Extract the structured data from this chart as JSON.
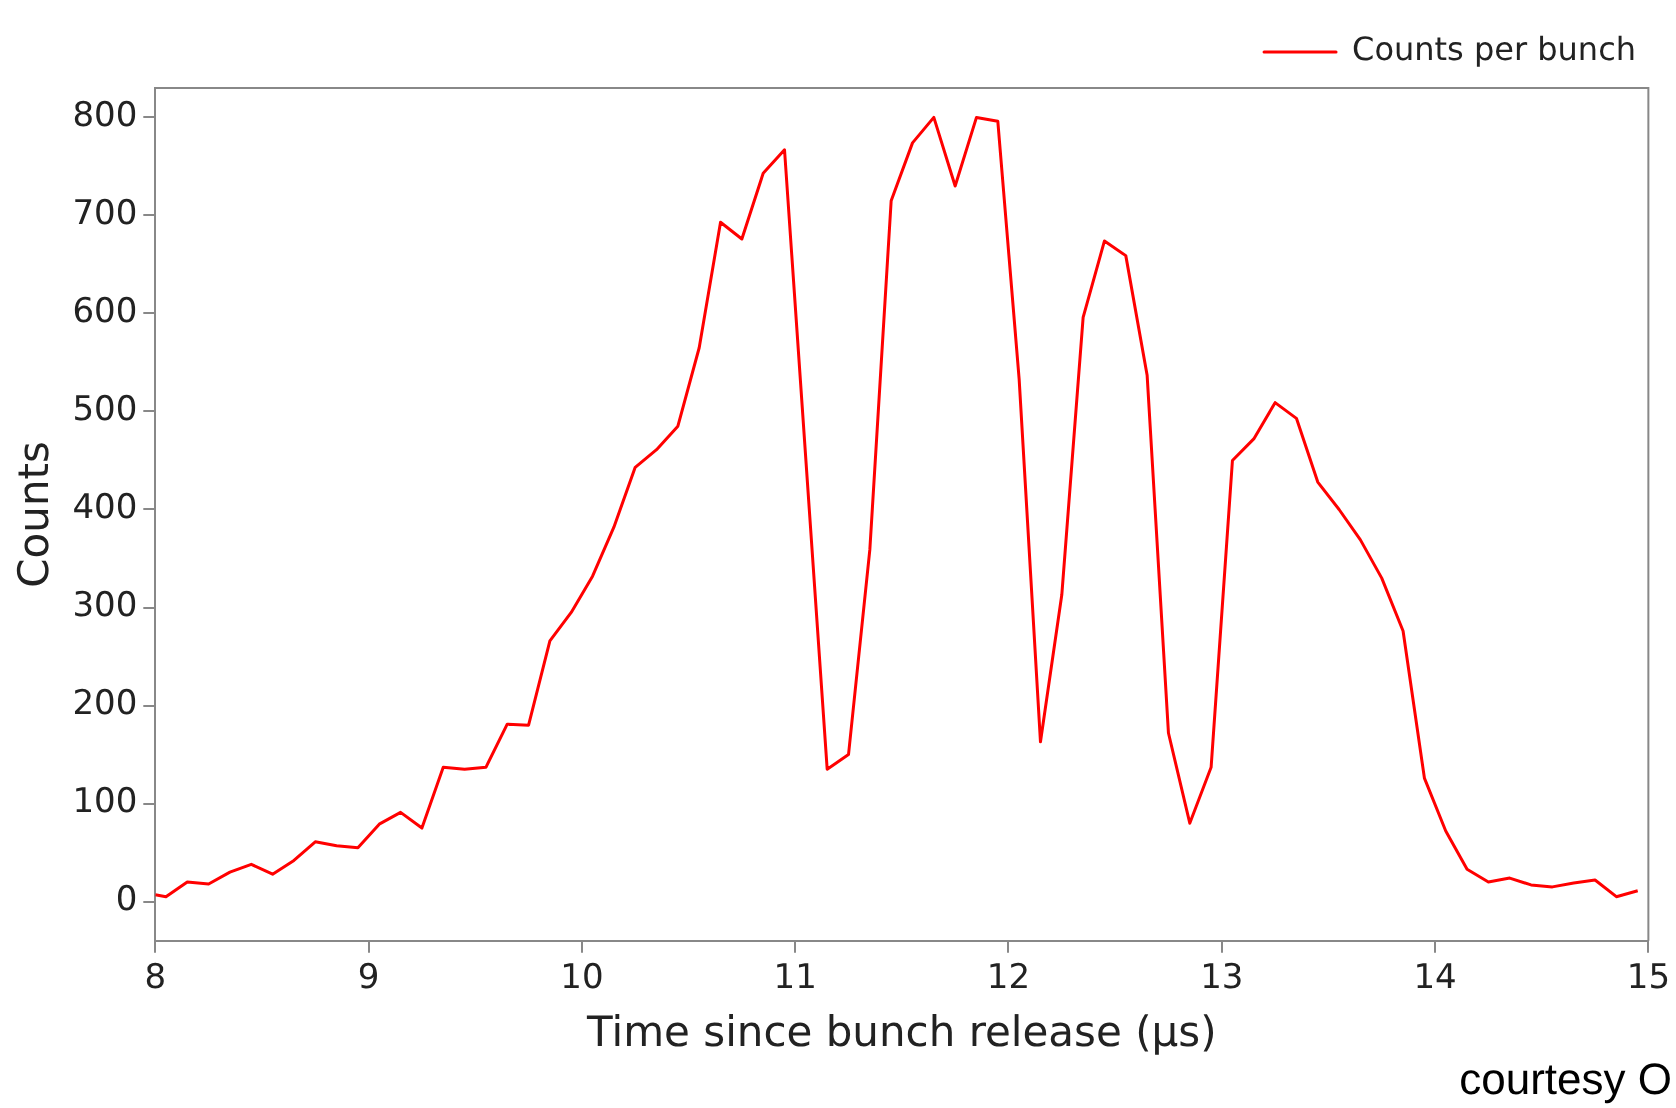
{
  "chart_data": {
    "type": "line",
    "xlabel": "Time since bunch release (μs)",
    "ylabel": "Counts",
    "x": [
      8.0,
      8.05,
      8.15,
      8.25,
      8.35,
      8.45,
      8.55,
      8.65,
      8.75,
      8.85,
      8.95,
      9.05,
      9.15,
      9.25,
      9.35,
      9.45,
      9.55,
      9.65,
      9.75,
      9.85,
      9.95,
      10.05,
      10.15,
      10.25,
      10.35,
      10.45,
      10.55,
      10.65,
      10.75,
      10.85,
      10.95,
      11.15,
      11.25,
      11.35,
      11.45,
      11.55,
      11.65,
      11.75,
      11.85,
      11.95,
      12.05,
      12.15,
      12.25,
      12.35,
      12.45,
      12.55,
      12.65,
      12.75,
      12.85,
      12.95,
      13.05,
      13.15,
      13.25,
      13.35,
      13.45,
      13.55,
      13.65,
      13.75,
      13.85,
      13.95,
      14.05,
      14.15,
      14.25,
      14.35,
      14.45,
      14.55,
      14.65,
      14.75,
      14.85,
      14.95
    ],
    "series": [
      {
        "name": "Counts per bunch",
        "color": "#ff0000",
        "values": [
          7,
          5,
          20,
          18,
          30,
          38,
          28,
          42,
          61,
          57,
          55,
          79,
          91,
          75,
          137,
          135,
          137,
          181,
          180,
          266,
          295,
          332,
          382,
          443,
          461,
          485,
          565,
          693,
          676,
          743,
          767,
          135,
          150,
          359,
          715,
          774,
          800,
          730,
          800,
          796,
          533,
          163,
          313,
          596,
          674,
          659,
          537,
          172,
          80,
          137,
          450,
          472,
          509,
          493,
          428,
          400,
          369,
          330,
          276,
          126,
          72,
          33,
          20,
          24,
          17,
          15,
          19,
          22,
          5,
          11
        ]
      }
    ],
    "xlim": [
      8,
      15
    ],
    "xticks": [
      8,
      9,
      10,
      11,
      12,
      13,
      14,
      15
    ],
    "ylim": [
      -40,
      830
    ],
    "yticks": [
      0,
      100,
      200,
      300,
      400,
      500,
      600,
      700,
      800
    ],
    "grid": false,
    "legend": "top right",
    "marker": "none",
    "line_style": "solid",
    "annotations": [
      "courtesy O"
    ]
  }
}
